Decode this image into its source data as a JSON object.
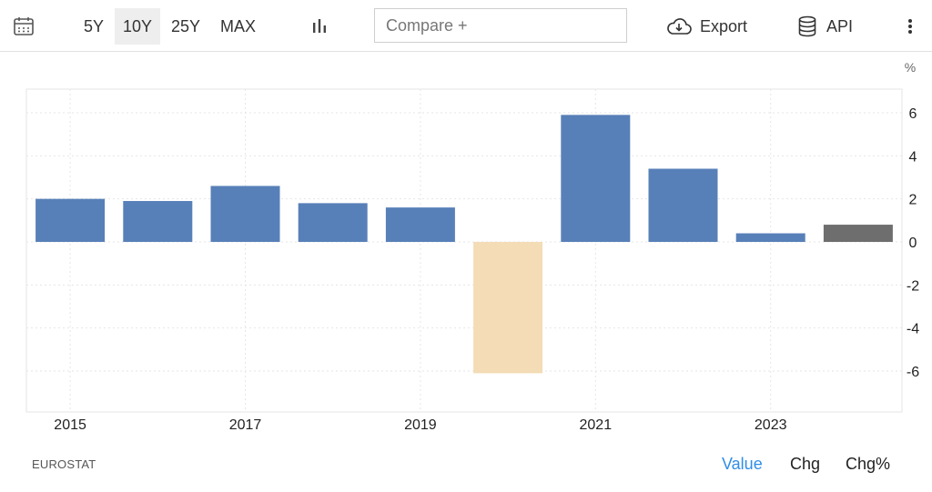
{
  "toolbar": {
    "ranges": [
      "5Y",
      "10Y",
      "25Y",
      "MAX"
    ],
    "active_range": "10Y",
    "compare_placeholder": "Compare +",
    "export_label": "Export",
    "api_label": "API"
  },
  "footer": {
    "source": "EUROSTAT",
    "modes": [
      "Value",
      "Chg",
      "Chg%"
    ],
    "active_mode": "Value"
  },
  "colors": {
    "positive": "#5880b8",
    "negative": "#f3dcb6",
    "latest": "#6e6e6e",
    "active_link": "#2f8ee8"
  },
  "chart_data": {
    "type": "bar",
    "unit": "%",
    "categories": [
      "2015",
      "2016",
      "2017",
      "2018",
      "2019",
      "2020",
      "2021",
      "2022",
      "2023",
      "2024"
    ],
    "values": [
      2.0,
      1.9,
      2.6,
      1.8,
      1.6,
      -6.1,
      5.9,
      3.4,
      0.4,
      0.8
    ],
    "x_tick_labels": [
      "2015",
      "2017",
      "2019",
      "2021",
      "2023"
    ],
    "y_ticks": [
      6,
      4,
      2,
      0,
      -2,
      -4,
      -6
    ],
    "ylim": [
      -8,
      7
    ],
    "y_axis_side": "right",
    "grid": true
  }
}
